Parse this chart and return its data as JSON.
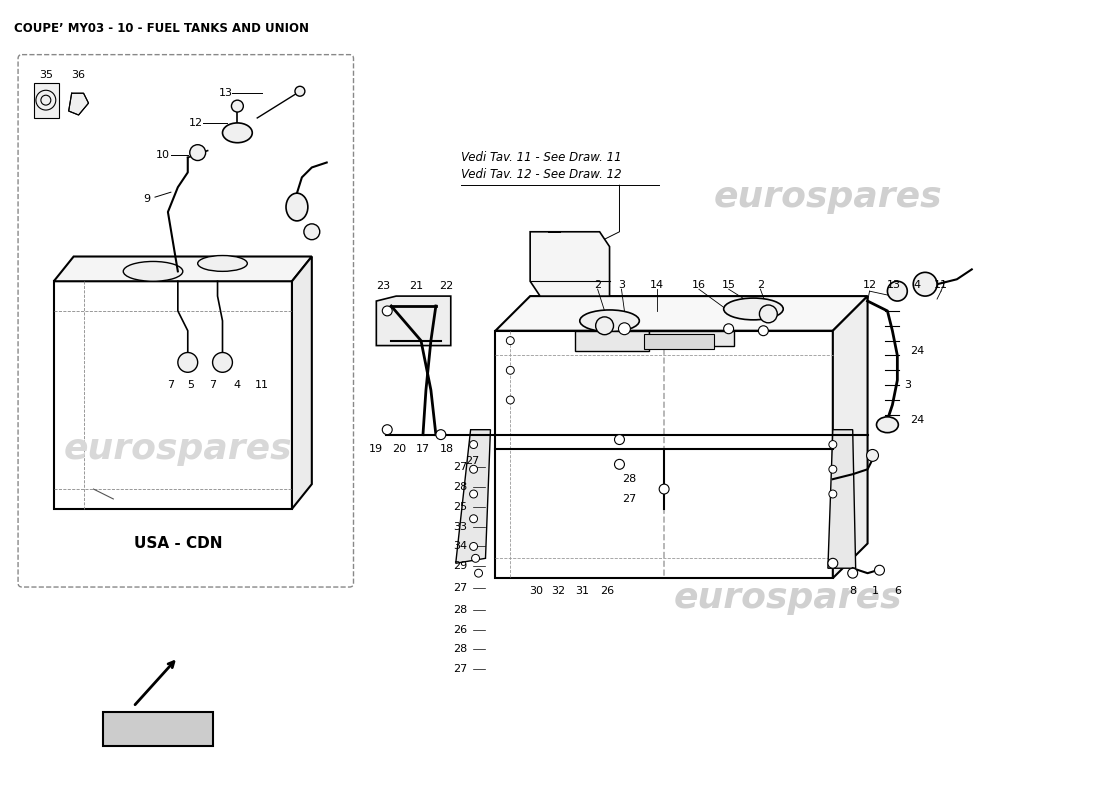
{
  "title": "COUPE’ MY03 - 10 - FUEL TANKS AND UNION",
  "title_fontsize": 8.5,
  "bg_color": "#ffffff",
  "watermark_text": "eurospares",
  "watermark_color": "#cccccc",
  "watermark_fontsize": 32,
  "usa_cdn_label": "USA - CDN",
  "vedi_line1": "Vedi Tav. 11 - See Draw. 11",
  "vedi_line2": "Vedi Tav. 12 - See Draw. 12",
  "label_fontsize": 8.0
}
